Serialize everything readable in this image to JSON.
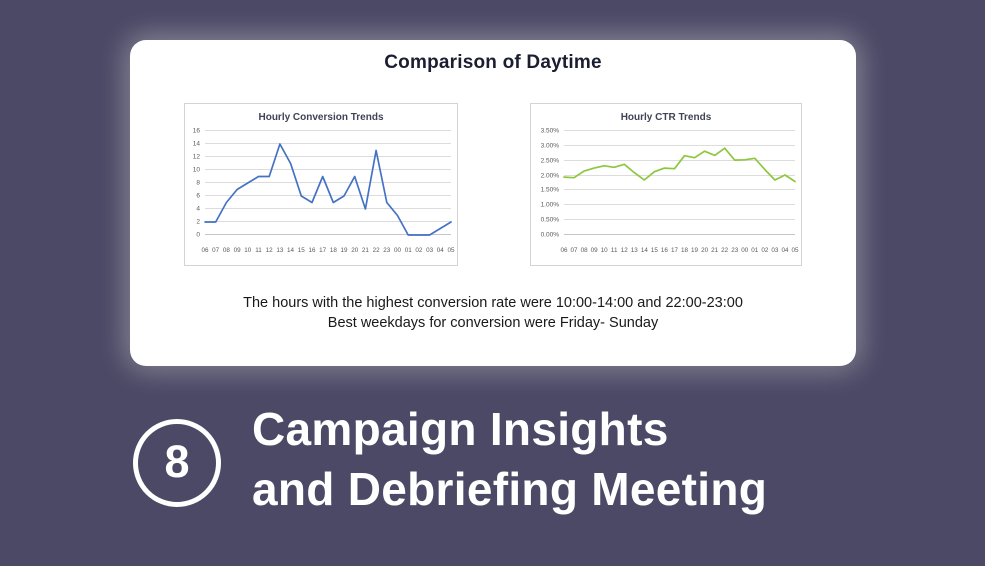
{
  "colors": {
    "background": "#4C4966",
    "card": "#FFFFFF",
    "conversion_line": "#4472C4",
    "ctr_line": "#8DC63F",
    "heading_text": "#FFFFFF"
  },
  "card": {
    "title": "Comparison of Daytime",
    "captions": [
      "The hours with the highest conversion rate were 10:00-14:00 and 22:00-23:00",
      "Best weekdays for conversion were Friday- Sunday"
    ]
  },
  "section": {
    "number": "8",
    "heading_line1": "Campaign Insights",
    "heading_line2": "and Debriefing Meeting"
  },
  "chart_data": [
    {
      "type": "line",
      "title": "Hourly Conversion Trends",
      "categories": [
        "06",
        "07",
        "08",
        "09",
        "10",
        "11",
        "12",
        "13",
        "14",
        "15",
        "16",
        "17",
        "18",
        "19",
        "20",
        "21",
        "22",
        "23",
        "00",
        "01",
        "02",
        "03",
        "04",
        "05"
      ],
      "values": [
        2,
        2,
        5,
        7,
        8,
        9,
        9,
        14,
        11,
        6,
        5,
        9,
        5,
        6,
        9,
        4,
        13,
        5,
        3,
        0,
        0,
        0,
        1,
        2
      ],
      "xlabel": "",
      "ylabel": "",
      "ylim": [
        0,
        16
      ],
      "ystep": 2,
      "tick_format": "number",
      "line_color": "#4472C4",
      "grid": true,
      "legend_position": "none"
    },
    {
      "type": "line",
      "title": "Hourly CTR Trends",
      "categories": [
        "06",
        "07",
        "08",
        "09",
        "10",
        "11",
        "12",
        "13",
        "14",
        "15",
        "16",
        "17",
        "18",
        "19",
        "20",
        "21",
        "22",
        "23",
        "00",
        "01",
        "02",
        "03",
        "04",
        "05"
      ],
      "values": [
        1.95,
        1.93,
        2.15,
        2.25,
        2.33,
        2.28,
        2.38,
        2.1,
        1.85,
        2.13,
        2.25,
        2.23,
        2.67,
        2.6,
        2.82,
        2.68,
        2.92,
        2.52,
        2.53,
        2.58,
        2.2,
        1.85,
        2.02,
        1.8
      ],
      "xlabel": "",
      "ylabel": "",
      "ylim": [
        0,
        3.5
      ],
      "ystep": 0.5,
      "tick_format": "percent2",
      "line_color": "#8DC63F",
      "grid": true,
      "legend_position": "none"
    }
  ]
}
